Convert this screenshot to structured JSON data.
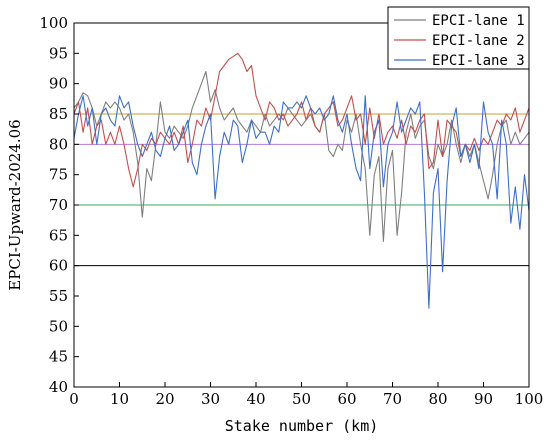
{
  "chart_data": {
    "type": "line",
    "xlabel": "Stake number (km)",
    "ylabel": "EPCI-Upward-2024.06",
    "xlim": [
      0,
      100
    ],
    "ylim": [
      40,
      100
    ],
    "xticks": [
      0,
      10,
      20,
      30,
      40,
      50,
      60,
      70,
      80,
      90,
      100
    ],
    "yticks": [
      40,
      45,
      50,
      55,
      60,
      65,
      70,
      75,
      80,
      85,
      90,
      95,
      100
    ],
    "grid": false,
    "legend_position": "top-right",
    "reference_lines": [
      {
        "y": 85,
        "color": "#c9a227"
      },
      {
        "y": 80,
        "color": "#b57ad6"
      },
      {
        "y": 70,
        "color": "#3aa860"
      },
      {
        "y": 60,
        "color": "#000000"
      }
    ],
    "series": [
      {
        "name": "EPCI-lane 1",
        "color": "#7f7f7f",
        "points": [
          [
            0,
            86
          ],
          [
            1,
            87
          ],
          [
            2,
            88.5
          ],
          [
            3,
            88
          ],
          [
            4,
            86
          ],
          [
            5,
            83
          ],
          [
            6,
            85
          ],
          [
            7,
            87
          ],
          [
            8,
            86
          ],
          [
            9,
            87
          ],
          [
            10,
            86
          ],
          [
            11,
            84
          ],
          [
            12,
            85
          ],
          [
            13,
            82
          ],
          [
            14,
            77
          ],
          [
            15,
            68
          ],
          [
            16,
            76
          ],
          [
            17,
            74
          ],
          [
            18,
            80
          ],
          [
            19,
            87
          ],
          [
            20,
            82
          ],
          [
            21,
            81
          ],
          [
            22,
            83
          ],
          [
            23,
            82
          ],
          [
            24,
            81
          ],
          [
            25,
            83
          ],
          [
            26,
            86
          ],
          [
            27,
            88
          ],
          [
            28,
            90
          ],
          [
            29,
            92
          ],
          [
            30,
            87
          ],
          [
            31,
            89
          ],
          [
            32,
            86
          ],
          [
            33,
            84
          ],
          [
            34,
            85
          ],
          [
            35,
            86
          ],
          [
            36,
            84
          ],
          [
            37,
            83
          ],
          [
            38,
            82
          ],
          [
            39,
            84
          ],
          [
            40,
            83
          ],
          [
            41,
            82
          ],
          [
            42,
            85
          ],
          [
            43,
            83
          ],
          [
            44,
            84
          ],
          [
            45,
            85
          ],
          [
            46,
            84
          ],
          [
            47,
            86
          ],
          [
            48,
            85
          ],
          [
            49,
            84
          ],
          [
            50,
            83
          ],
          [
            51,
            84
          ],
          [
            52,
            85
          ],
          [
            53,
            83
          ],
          [
            54,
            82
          ],
          [
            55,
            85
          ],
          [
            56,
            79
          ],
          [
            57,
            78
          ],
          [
            58,
            80
          ],
          [
            59,
            79
          ],
          [
            60,
            84
          ],
          [
            61,
            82
          ],
          [
            62,
            85
          ],
          [
            63,
            80
          ],
          [
            64,
            76
          ],
          [
            65,
            65
          ],
          [
            66,
            75
          ],
          [
            67,
            78
          ],
          [
            68,
            64
          ],
          [
            69,
            76
          ],
          [
            70,
            79
          ],
          [
            71,
            65
          ],
          [
            72,
            72
          ],
          [
            73,
            82
          ],
          [
            74,
            85
          ],
          [
            75,
            81
          ],
          [
            76,
            83
          ],
          [
            77,
            84
          ],
          [
            78,
            78
          ],
          [
            79,
            76
          ],
          [
            80,
            80
          ],
          [
            81,
            78
          ],
          [
            82,
            80
          ],
          [
            83,
            84
          ],
          [
            84,
            80
          ],
          [
            85,
            77
          ],
          [
            86,
            80
          ],
          [
            87,
            78
          ],
          [
            88,
            80
          ],
          [
            89,
            77
          ],
          [
            90,
            74
          ],
          [
            91,
            71
          ],
          [
            92,
            75
          ],
          [
            93,
            80
          ],
          [
            94,
            83
          ],
          [
            95,
            84
          ],
          [
            96,
            80
          ],
          [
            97,
            82
          ],
          [
            98,
            80
          ],
          [
            99,
            81
          ],
          [
            100,
            82
          ]
        ]
      },
      {
        "name": "EPCI-lane 2",
        "color": "#c0504d",
        "points": [
          [
            0,
            85
          ],
          [
            1,
            87
          ],
          [
            2,
            82
          ],
          [
            3,
            86
          ],
          [
            4,
            80
          ],
          [
            5,
            83
          ],
          [
            6,
            84
          ],
          [
            7,
            80
          ],
          [
            8,
            82
          ],
          [
            9,
            80
          ],
          [
            10,
            83
          ],
          [
            11,
            80
          ],
          [
            12,
            76
          ],
          [
            13,
            73
          ],
          [
            14,
            76
          ],
          [
            15,
            80
          ],
          [
            16,
            79
          ],
          [
            17,
            81
          ],
          [
            18,
            80
          ],
          [
            19,
            82
          ],
          [
            20,
            81
          ],
          [
            21,
            80
          ],
          [
            22,
            82
          ],
          [
            23,
            80
          ],
          [
            24,
            83
          ],
          [
            25,
            77
          ],
          [
            26,
            80
          ],
          [
            27,
            84
          ],
          [
            28,
            83
          ],
          [
            29,
            86
          ],
          [
            30,
            84
          ],
          [
            31,
            88
          ],
          [
            32,
            92
          ],
          [
            33,
            93
          ],
          [
            34,
            94
          ],
          [
            35,
            94.5
          ],
          [
            36,
            95
          ],
          [
            37,
            94
          ],
          [
            38,
            92
          ],
          [
            39,
            93
          ],
          [
            40,
            88
          ],
          [
            41,
            86
          ],
          [
            42,
            84
          ],
          [
            43,
            87
          ],
          [
            44,
            86
          ],
          [
            45,
            84
          ],
          [
            46,
            85
          ],
          [
            47,
            83
          ],
          [
            48,
            84
          ],
          [
            49,
            85
          ],
          [
            50,
            87
          ],
          [
            51,
            84
          ],
          [
            52,
            86
          ],
          [
            53,
            83
          ],
          [
            54,
            82
          ],
          [
            55,
            85
          ],
          [
            56,
            86
          ],
          [
            57,
            87
          ],
          [
            58,
            83
          ],
          [
            59,
            84
          ],
          [
            60,
            86
          ],
          [
            61,
            88
          ],
          [
            62,
            84
          ],
          [
            63,
            85
          ],
          [
            64,
            80
          ],
          [
            65,
            86
          ],
          [
            66,
            81
          ],
          [
            67,
            85
          ],
          [
            68,
            80
          ],
          [
            69,
            82
          ],
          [
            70,
            83
          ],
          [
            71,
            81
          ],
          [
            72,
            84
          ],
          [
            73,
            80
          ],
          [
            74,
            83
          ],
          [
            75,
            82
          ],
          [
            76,
            84
          ],
          [
            77,
            85
          ],
          [
            78,
            76
          ],
          [
            79,
            77
          ],
          [
            80,
            84
          ],
          [
            81,
            78
          ],
          [
            82,
            84
          ],
          [
            83,
            83
          ],
          [
            84,
            82
          ],
          [
            85,
            78
          ],
          [
            86,
            80
          ],
          [
            87,
            79
          ],
          [
            88,
            81
          ],
          [
            89,
            79
          ],
          [
            90,
            81
          ],
          [
            91,
            80
          ],
          [
            92,
            82
          ],
          [
            93,
            84
          ],
          [
            94,
            83
          ],
          [
            95,
            85
          ],
          [
            96,
            84
          ],
          [
            97,
            86
          ],
          [
            98,
            82
          ],
          [
            99,
            84
          ],
          [
            100,
            86
          ]
        ]
      },
      {
        "name": "EPCI-lane 3",
        "color": "#3f6fc4",
        "points": [
          [
            0,
            81
          ],
          [
            1,
            85
          ],
          [
            2,
            88
          ],
          [
            3,
            83
          ],
          [
            4,
            86
          ],
          [
            5,
            80
          ],
          [
            6,
            85
          ],
          [
            7,
            86
          ],
          [
            8,
            84
          ],
          [
            9,
            83
          ],
          [
            10,
            88
          ],
          [
            11,
            86
          ],
          [
            12,
            87
          ],
          [
            13,
            83
          ],
          [
            14,
            80
          ],
          [
            15,
            78
          ],
          [
            16,
            80
          ],
          [
            17,
            82
          ],
          [
            18,
            79
          ],
          [
            19,
            78
          ],
          [
            20,
            81
          ],
          [
            21,
            83
          ],
          [
            22,
            79
          ],
          [
            23,
            80
          ],
          [
            24,
            82
          ],
          [
            25,
            84
          ],
          [
            26,
            77
          ],
          [
            27,
            75
          ],
          [
            28,
            80
          ],
          [
            29,
            83
          ],
          [
            30,
            85
          ],
          [
            31,
            71
          ],
          [
            32,
            78
          ],
          [
            33,
            82
          ],
          [
            34,
            80
          ],
          [
            35,
            84
          ],
          [
            36,
            83
          ],
          [
            37,
            77
          ],
          [
            38,
            80
          ],
          [
            39,
            84
          ],
          [
            40,
            81
          ],
          [
            41,
            82
          ],
          [
            42,
            82
          ],
          [
            43,
            80
          ],
          [
            44,
            83
          ],
          [
            45,
            82
          ],
          [
            46,
            87
          ],
          [
            47,
            86
          ],
          [
            48,
            86
          ],
          [
            49,
            87
          ],
          [
            50,
            86
          ],
          [
            51,
            88
          ],
          [
            52,
            86
          ],
          [
            53,
            85
          ],
          [
            54,
            86
          ],
          [
            55,
            84
          ],
          [
            56,
            85
          ],
          [
            57,
            88
          ],
          [
            58,
            84
          ],
          [
            59,
            82
          ],
          [
            60,
            85
          ],
          [
            61,
            80
          ],
          [
            62,
            76
          ],
          [
            63,
            74
          ],
          [
            64,
            88
          ],
          [
            65,
            76
          ],
          [
            66,
            82
          ],
          [
            67,
            84
          ],
          [
            68,
            73
          ],
          [
            69,
            80
          ],
          [
            70,
            82
          ],
          [
            71,
            87
          ],
          [
            72,
            82
          ],
          [
            73,
            84
          ],
          [
            74,
            86
          ],
          [
            75,
            85
          ],
          [
            76,
            87
          ],
          [
            77,
            72
          ],
          [
            78,
            53
          ],
          [
            79,
            72
          ],
          [
            80,
            76
          ],
          [
            81,
            59
          ],
          [
            82,
            74
          ],
          [
            83,
            83
          ],
          [
            84,
            86
          ],
          [
            85,
            78
          ],
          [
            86,
            80
          ],
          [
            87,
            77
          ],
          [
            88,
            80
          ],
          [
            89,
            76
          ],
          [
            90,
            87
          ],
          [
            91,
            82
          ],
          [
            92,
            80
          ],
          [
            93,
            71
          ],
          [
            94,
            84
          ],
          [
            95,
            80
          ],
          [
            96,
            67
          ],
          [
            97,
            73
          ],
          [
            98,
            66
          ],
          [
            99,
            75
          ],
          [
            100,
            69
          ]
        ]
      }
    ]
  }
}
